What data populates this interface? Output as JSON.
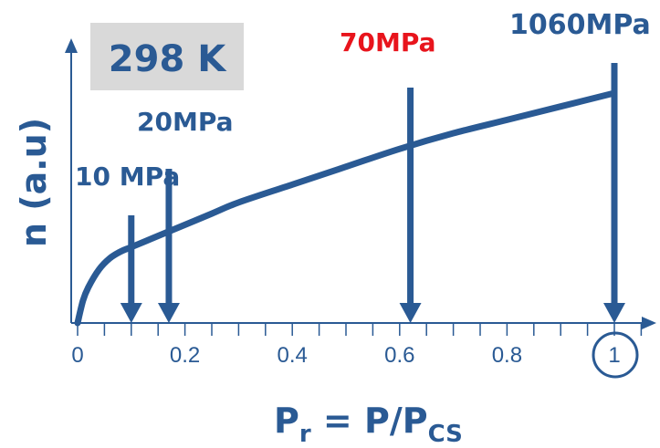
{
  "chart_data": {
    "type": "line",
    "title": "",
    "ylabel": "n (a.u)",
    "xlabel": "P",
    "xlabel_sub": "r",
    "xlabel_eq": " = P/P",
    "xlabel_sub2": "CS",
    "xlim": [
      0,
      1.05
    ],
    "ylim": [
      0,
      1.2
    ],
    "grid": false,
    "x_ticks": [
      0,
      0.2,
      0.4,
      0.6,
      0.8,
      1
    ],
    "x_tick_labels": [
      "0",
      "0.2",
      "0.4",
      "0.6",
      "0.8",
      "1"
    ],
    "x_minor_tick_step": 0.05,
    "highlighted_tick": 1,
    "series": [
      {
        "color": "#2a5a94",
        "x": [
          0,
          0.01,
          0.02,
          0.04,
          0.06,
          0.08,
          0.1,
          0.14,
          0.18,
          0.25,
          0.3,
          0.4,
          0.5,
          0.6,
          0.7,
          0.8,
          0.9,
          1.0
        ],
        "y": [
          0,
          0.1,
          0.16,
          0.24,
          0.29,
          0.32,
          0.34,
          0.38,
          0.42,
          0.49,
          0.54,
          0.62,
          0.7,
          0.78,
          0.85,
          0.91,
          0.97,
          1.03
        ]
      }
    ],
    "temperature_label": "298 K",
    "annotations": [
      {
        "text": "10 MPa",
        "x": 0.1,
        "color": "#2a5a94"
      },
      {
        "text": "20MPa",
        "x": 0.17,
        "color": "#2a5a94"
      },
      {
        "text": "70MPa",
        "x": 0.62,
        "color": "#e8141c"
      },
      {
        "text": "1060MPa",
        "x": 1.0,
        "color": "#2a5a94"
      }
    ]
  }
}
